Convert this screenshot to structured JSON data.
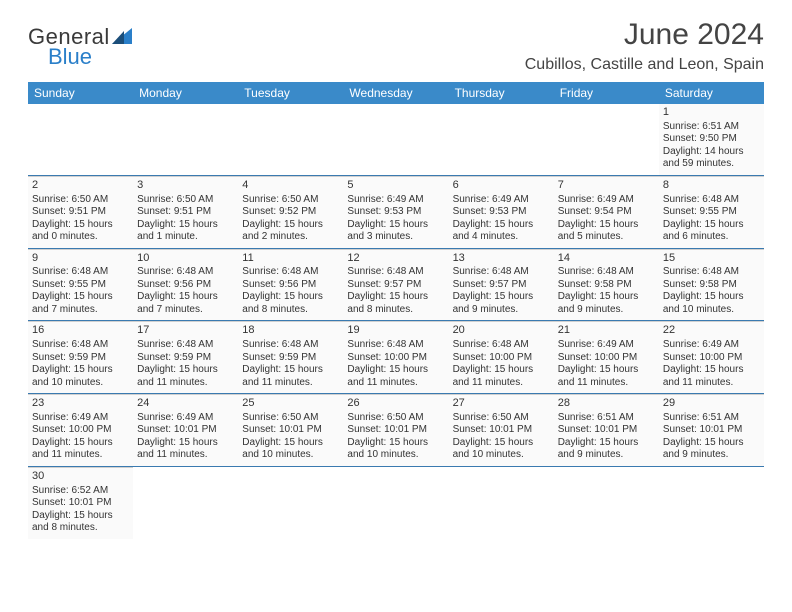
{
  "brand": {
    "part1": "General",
    "part2": "Blue"
  },
  "header": {
    "month_title": "June 2024",
    "location": "Cubillos, Castille and Leon, Spain"
  },
  "colors": {
    "header_bar": "#3a8ac9",
    "header_text": "#ffffff",
    "row_divider": "#3a7ab0",
    "cell_bg": "#fafafa",
    "logo_blue": "#2a7fc9"
  },
  "day_labels": [
    "Sunday",
    "Monday",
    "Tuesday",
    "Wednesday",
    "Thursday",
    "Friday",
    "Saturday"
  ],
  "weeks": [
    [
      null,
      null,
      null,
      null,
      null,
      null,
      {
        "n": "1",
        "sr": "Sunrise: 6:51 AM",
        "ss": "Sunset: 9:50 PM",
        "d1": "Daylight: 14 hours",
        "d2": "and 59 minutes."
      }
    ],
    [
      {
        "n": "2",
        "sr": "Sunrise: 6:50 AM",
        "ss": "Sunset: 9:51 PM",
        "d1": "Daylight: 15 hours",
        "d2": "and 0 minutes."
      },
      {
        "n": "3",
        "sr": "Sunrise: 6:50 AM",
        "ss": "Sunset: 9:51 PM",
        "d1": "Daylight: 15 hours",
        "d2": "and 1 minute."
      },
      {
        "n": "4",
        "sr": "Sunrise: 6:50 AM",
        "ss": "Sunset: 9:52 PM",
        "d1": "Daylight: 15 hours",
        "d2": "and 2 minutes."
      },
      {
        "n": "5",
        "sr": "Sunrise: 6:49 AM",
        "ss": "Sunset: 9:53 PM",
        "d1": "Daylight: 15 hours",
        "d2": "and 3 minutes."
      },
      {
        "n": "6",
        "sr": "Sunrise: 6:49 AM",
        "ss": "Sunset: 9:53 PM",
        "d1": "Daylight: 15 hours",
        "d2": "and 4 minutes."
      },
      {
        "n": "7",
        "sr": "Sunrise: 6:49 AM",
        "ss": "Sunset: 9:54 PM",
        "d1": "Daylight: 15 hours",
        "d2": "and 5 minutes."
      },
      {
        "n": "8",
        "sr": "Sunrise: 6:48 AM",
        "ss": "Sunset: 9:55 PM",
        "d1": "Daylight: 15 hours",
        "d2": "and 6 minutes."
      }
    ],
    [
      {
        "n": "9",
        "sr": "Sunrise: 6:48 AM",
        "ss": "Sunset: 9:55 PM",
        "d1": "Daylight: 15 hours",
        "d2": "and 7 minutes."
      },
      {
        "n": "10",
        "sr": "Sunrise: 6:48 AM",
        "ss": "Sunset: 9:56 PM",
        "d1": "Daylight: 15 hours",
        "d2": "and 7 minutes."
      },
      {
        "n": "11",
        "sr": "Sunrise: 6:48 AM",
        "ss": "Sunset: 9:56 PM",
        "d1": "Daylight: 15 hours",
        "d2": "and 8 minutes."
      },
      {
        "n": "12",
        "sr": "Sunrise: 6:48 AM",
        "ss": "Sunset: 9:57 PM",
        "d1": "Daylight: 15 hours",
        "d2": "and 8 minutes."
      },
      {
        "n": "13",
        "sr": "Sunrise: 6:48 AM",
        "ss": "Sunset: 9:57 PM",
        "d1": "Daylight: 15 hours",
        "d2": "and 9 minutes."
      },
      {
        "n": "14",
        "sr": "Sunrise: 6:48 AM",
        "ss": "Sunset: 9:58 PM",
        "d1": "Daylight: 15 hours",
        "d2": "and 9 minutes."
      },
      {
        "n": "15",
        "sr": "Sunrise: 6:48 AM",
        "ss": "Sunset: 9:58 PM",
        "d1": "Daylight: 15 hours",
        "d2": "and 10 minutes."
      }
    ],
    [
      {
        "n": "16",
        "sr": "Sunrise: 6:48 AM",
        "ss": "Sunset: 9:59 PM",
        "d1": "Daylight: 15 hours",
        "d2": "and 10 minutes."
      },
      {
        "n": "17",
        "sr": "Sunrise: 6:48 AM",
        "ss": "Sunset: 9:59 PM",
        "d1": "Daylight: 15 hours",
        "d2": "and 11 minutes."
      },
      {
        "n": "18",
        "sr": "Sunrise: 6:48 AM",
        "ss": "Sunset: 9:59 PM",
        "d1": "Daylight: 15 hours",
        "d2": "and 11 minutes."
      },
      {
        "n": "19",
        "sr": "Sunrise: 6:48 AM",
        "ss": "Sunset: 10:00 PM",
        "d1": "Daylight: 15 hours",
        "d2": "and 11 minutes."
      },
      {
        "n": "20",
        "sr": "Sunrise: 6:48 AM",
        "ss": "Sunset: 10:00 PM",
        "d1": "Daylight: 15 hours",
        "d2": "and 11 minutes."
      },
      {
        "n": "21",
        "sr": "Sunrise: 6:49 AM",
        "ss": "Sunset: 10:00 PM",
        "d1": "Daylight: 15 hours",
        "d2": "and 11 minutes."
      },
      {
        "n": "22",
        "sr": "Sunrise: 6:49 AM",
        "ss": "Sunset: 10:00 PM",
        "d1": "Daylight: 15 hours",
        "d2": "and 11 minutes."
      }
    ],
    [
      {
        "n": "23",
        "sr": "Sunrise: 6:49 AM",
        "ss": "Sunset: 10:00 PM",
        "d1": "Daylight: 15 hours",
        "d2": "and 11 minutes."
      },
      {
        "n": "24",
        "sr": "Sunrise: 6:49 AM",
        "ss": "Sunset: 10:01 PM",
        "d1": "Daylight: 15 hours",
        "d2": "and 11 minutes."
      },
      {
        "n": "25",
        "sr": "Sunrise: 6:50 AM",
        "ss": "Sunset: 10:01 PM",
        "d1": "Daylight: 15 hours",
        "d2": "and 10 minutes."
      },
      {
        "n": "26",
        "sr": "Sunrise: 6:50 AM",
        "ss": "Sunset: 10:01 PM",
        "d1": "Daylight: 15 hours",
        "d2": "and 10 minutes."
      },
      {
        "n": "27",
        "sr": "Sunrise: 6:50 AM",
        "ss": "Sunset: 10:01 PM",
        "d1": "Daylight: 15 hours",
        "d2": "and 10 minutes."
      },
      {
        "n": "28",
        "sr": "Sunrise: 6:51 AM",
        "ss": "Sunset: 10:01 PM",
        "d1": "Daylight: 15 hours",
        "d2": "and 9 minutes."
      },
      {
        "n": "29",
        "sr": "Sunrise: 6:51 AM",
        "ss": "Sunset: 10:01 PM",
        "d1": "Daylight: 15 hours",
        "d2": "and 9 minutes."
      }
    ],
    [
      {
        "n": "30",
        "sr": "Sunrise: 6:52 AM",
        "ss": "Sunset: 10:01 PM",
        "d1": "Daylight: 15 hours",
        "d2": "and 8 minutes."
      },
      null,
      null,
      null,
      null,
      null,
      null
    ]
  ]
}
